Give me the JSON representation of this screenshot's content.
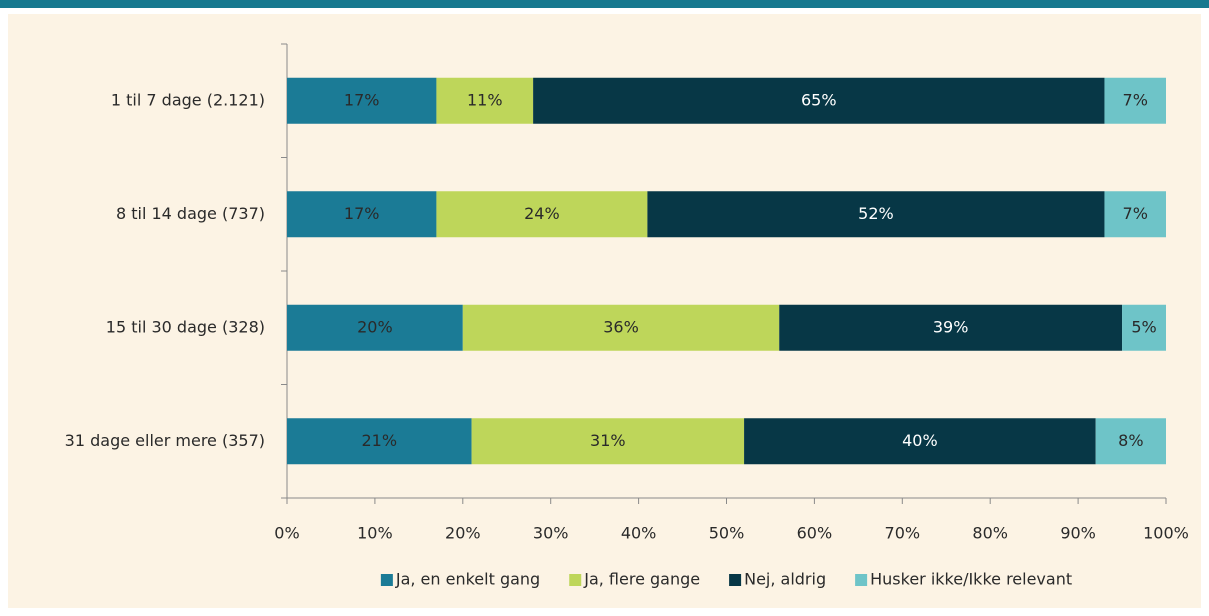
{
  "chart_data": {
    "type": "stacked-barh",
    "categories": [
      "1 til 7 dage (2.121)",
      "8 til 14 dage (737)",
      "15 til 30 dage (328)",
      "31 dage eller mere (357)"
    ],
    "series": [
      {
        "name": "Ja, en enkelt gang",
        "color": "#1b7b96",
        "label_color": "#2a2a2a",
        "values": [
          17,
          17,
          20,
          21
        ],
        "value_labels": [
          "17%",
          "17%",
          "20%",
          "21%"
        ]
      },
      {
        "name": "Ja, flere gange",
        "color": "#bed65a",
        "label_color": "#2a2a2a",
        "values": [
          11,
          24,
          36,
          31
        ],
        "value_labels": [
          "11%",
          "24%",
          "36%",
          "31%"
        ]
      },
      {
        "name": "Nej, aldrig",
        "color": "#073746",
        "label_color": "#ffffff",
        "values": [
          65,
          52,
          39,
          40
        ],
        "value_labels": [
          "65%",
          "52%",
          "39%",
          "40%"
        ]
      },
      {
        "name": "Husker ikke/Ikke relevant",
        "color": "#6ec4c8",
        "label_color": "#2a2a2a",
        "values": [
          7,
          7,
          5,
          8
        ],
        "value_labels": [
          "7%",
          "7%",
          "5%",
          "8%"
        ]
      }
    ],
    "xlim": [
      0,
      100
    ],
    "xticks": [
      {
        "value": 0,
        "label": "0%"
      },
      {
        "value": 10,
        "label": "10%"
      },
      {
        "value": 20,
        "label": "20%"
      },
      {
        "value": 30,
        "label": "30%"
      },
      {
        "value": 40,
        "label": "40%"
      },
      {
        "value": 50,
        "label": "50%"
      },
      {
        "value": 60,
        "label": "60%"
      },
      {
        "value": 70,
        "label": "70%"
      },
      {
        "value": 80,
        "label": "80%"
      },
      {
        "value": 90,
        "label": "90%"
      },
      {
        "value": 100,
        "label": "100%"
      }
    ],
    "legend": "bottom"
  }
}
